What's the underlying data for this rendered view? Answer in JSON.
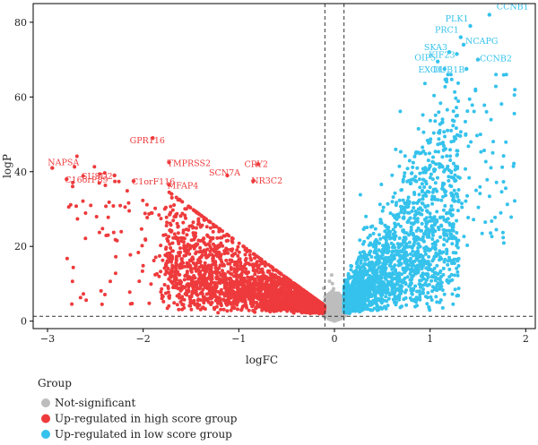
{
  "chart_data": {
    "type": "scatter",
    "xlabel": "logFC",
    "ylabel": "logP",
    "xlim": [
      -3.15,
      2.1
    ],
    "ylim": [
      -2,
      85
    ],
    "xticks": [
      -3,
      -2,
      -1,
      0,
      1,
      2
    ],
    "yticks": [
      0,
      20,
      40,
      60,
      80
    ],
    "thresholds": {
      "logFC": [
        -0.1,
        0.1
      ],
      "logP": 1.3
    },
    "legend": {
      "title": "Group",
      "placement": "bottom-left",
      "entries": [
        {
          "label": "Not-significant",
          "color": "#bdbdbd"
        },
        {
          "label": "Up-regulated in high score group",
          "color": "#ee3a3c"
        },
        {
          "label": "Up-regulated in low score group",
          "color": "#35c2ec"
        }
      ]
    },
    "labeled_genes": [
      {
        "gene": "CCNB1",
        "x": 1.62,
        "y": 82,
        "group": "low"
      },
      {
        "gene": "PLK1",
        "x": 1.42,
        "y": 79,
        "group": "low"
      },
      {
        "gene": "PRC1",
        "x": 1.32,
        "y": 76,
        "group": "low"
      },
      {
        "gene": "NCAPG",
        "x": 1.35,
        "y": 74,
        "group": "low"
      },
      {
        "gene": "SKA3",
        "x": 1.2,
        "y": 72,
        "group": "low"
      },
      {
        "gene": "KIF23",
        "x": 1.28,
        "y": 71.5,
        "group": "low"
      },
      {
        "gene": "OIP5",
        "x": 1.08,
        "y": 69.5,
        "group": "low"
      },
      {
        "gene": "CCNB2",
        "x": 1.5,
        "y": 70,
        "group": "low"
      },
      {
        "gene": "EXO1",
        "x": 1.15,
        "y": 67.5,
        "group": "low"
      },
      {
        "gene": "DUB1B",
        "x": 1.38,
        "y": 67.5,
        "group": "low"
      },
      {
        "gene": "GPR116",
        "x": -1.9,
        "y": 49,
        "group": "high"
      },
      {
        "gene": "NAPSA",
        "x": -2.95,
        "y": 41,
        "group": "high"
      },
      {
        "gene": "TMPRSS2",
        "x": -1.73,
        "y": 42.5,
        "group": "high"
      },
      {
        "gene": "SUSD2",
        "x": -2.3,
        "y": 39,
        "group": "high"
      },
      {
        "gene": "C1orF116",
        "x": -2.1,
        "y": 37.5,
        "group": "high"
      },
      {
        "gene": "CRY2",
        "x": -0.8,
        "y": 42,
        "group": "high"
      },
      {
        "gene": "C16orF89",
        "x": -2.8,
        "y": 38,
        "group": "high"
      },
      {
        "gene": "SCN7A",
        "x": -1.12,
        "y": 39,
        "group": "high"
      },
      {
        "gene": "MFAP4",
        "x": -1.73,
        "y": 36.5,
        "group": "high"
      },
      {
        "gene": "NR3C2",
        "x": -0.85,
        "y": 37.5,
        "group": "high"
      }
    ],
    "bulk_distribution_note": ""
  }
}
